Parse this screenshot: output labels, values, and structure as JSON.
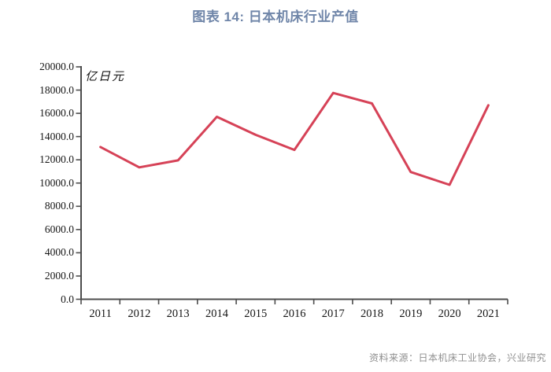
{
  "title": "图表 14: 日本机床行业产值",
  "source": "资料来源：日本机床工业协会，兴业研究",
  "colors": {
    "title": "#7086a9",
    "line": "#d64257",
    "axis": "#4d4d4d",
    "tick_label": "#161616",
    "source": "#8f8f8f"
  },
  "chart_data": {
    "type": "line",
    "title": "图表 14: 日本机床行业产值",
    "unit_label": "亿日元",
    "categories": [
      "2011",
      "2012",
      "2013",
      "2014",
      "2015",
      "2016",
      "2017",
      "2018",
      "2019",
      "2020",
      "2021"
    ],
    "series": [
      {
        "name": "日本机床行业产值",
        "values": [
          13100,
          11350,
          11950,
          15700,
          14150,
          12850,
          17750,
          16850,
          10950,
          9850,
          16700
        ]
      }
    ],
    "xlabel": "",
    "ylabel": "亿日元",
    "ylim": [
      0,
      20000
    ],
    "y_tick_step": 2000,
    "y_tick_labels": [
      "0.0",
      "2000.0",
      "4000.0",
      "6000.0",
      "8000.0",
      "10000.0",
      "12000.0",
      "14000.0",
      "16000.0",
      "18000.0",
      "20000.0"
    ],
    "grid": false,
    "legend": "none"
  }
}
